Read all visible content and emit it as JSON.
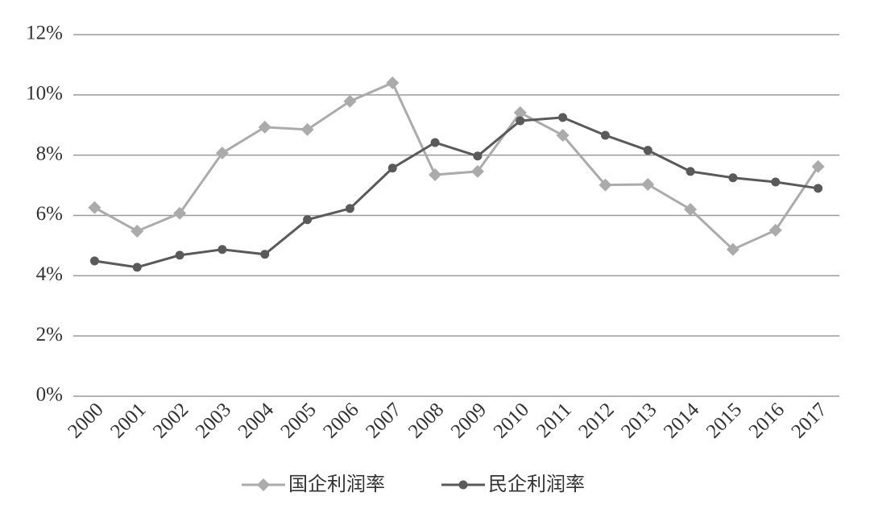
{
  "chart_data": {
    "type": "line",
    "categories": [
      "2000",
      "2001",
      "2002",
      "2003",
      "2004",
      "2005",
      "2006",
      "2007",
      "2008",
      "2009",
      "2010",
      "2011",
      "2012",
      "2013",
      "2014",
      "2015",
      "2016",
      "2017"
    ],
    "series": [
      {
        "name": "国企利润率",
        "color": "#ababab",
        "marker": "diamond",
        "values": [
          6.26,
          5.48,
          6.07,
          8.07,
          8.93,
          8.85,
          9.79,
          10.4,
          7.35,
          7.46,
          9.41,
          8.66,
          7.01,
          7.03,
          6.2,
          4.87,
          5.51,
          7.62
        ]
      },
      {
        "name": "民企利润率",
        "color": "#5a5a5a",
        "marker": "circle",
        "values": [
          4.49,
          4.28,
          4.68,
          4.87,
          4.71,
          5.86,
          6.23,
          7.57,
          8.42,
          7.97,
          9.14,
          9.25,
          8.66,
          8.16,
          7.46,
          7.25,
          7.11,
          6.9
        ]
      }
    ],
    "ylim": [
      0,
      12
    ],
    "yticks": [
      {
        "value": 0,
        "label": "0%"
      },
      {
        "value": 2,
        "label": "2%"
      },
      {
        "value": 4,
        "label": "4%"
      },
      {
        "value": 6,
        "label": "6%"
      },
      {
        "value": 8,
        "label": "8%"
      },
      {
        "value": 10,
        "label": "10%"
      },
      {
        "value": 12,
        "label": "12%"
      }
    ],
    "grid": true,
    "legend": "bottom"
  }
}
